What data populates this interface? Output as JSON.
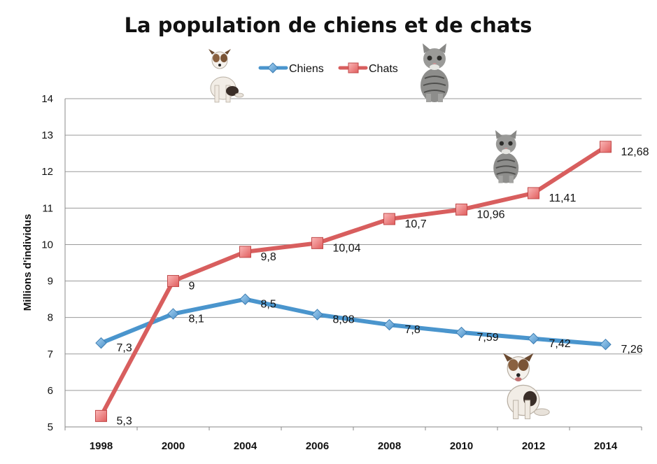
{
  "chart_data": {
    "type": "line",
    "title": "La population de chiens et de chats",
    "xlabel": "",
    "ylabel": "Millions d'individus",
    "categories": [
      "1998",
      "2000",
      "2004",
      "2006",
      "2008",
      "2010",
      "2012",
      "2014"
    ],
    "ylim": [
      5,
      14
    ],
    "yticks": [
      "5",
      "6",
      "7",
      "8",
      "9",
      "10",
      "11",
      "12",
      "13",
      "14"
    ],
    "grid": "horizontal",
    "legend_position": "top",
    "series": [
      {
        "name": "Chiens",
        "values": [
          7.3,
          8.1,
          8.5,
          8.08,
          7.8,
          7.59,
          7.42,
          7.26
        ],
        "labels": [
          "7,3",
          "8,1",
          "8,5",
          "8,08",
          "7,8",
          "7,59",
          "7,42",
          "7,26"
        ],
        "color": "#4a95cd",
        "marker": "diamond"
      },
      {
        "name": "Chats",
        "values": [
          5.3,
          9,
          9.8,
          10.04,
          10.7,
          10.96,
          11.41,
          12.68
        ],
        "labels": [
          "5,3",
          "9",
          "9,8",
          "10,04",
          "10,7",
          "10,96",
          "11,41",
          "12,68"
        ],
        "color": "#d85e5e",
        "marker": "square"
      }
    ],
    "images": [
      "dog-photo",
      "cat-photo"
    ]
  }
}
